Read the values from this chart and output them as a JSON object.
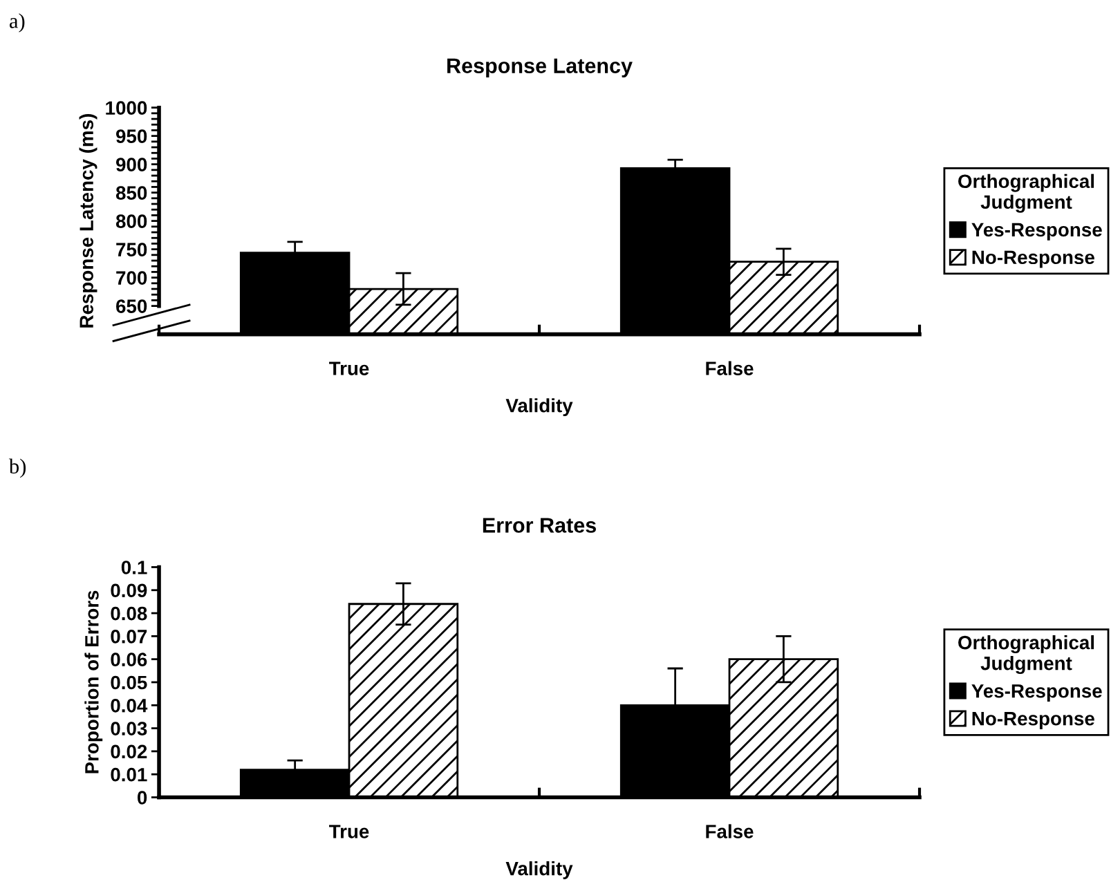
{
  "chart_data": [
    {
      "type": "bar",
      "title": "Response Latency",
      "xlabel": "Validity",
      "ylabel": "Response Latency (ms)",
      "categories": [
        "True",
        "False"
      ],
      "series": [
        {
          "name": "Yes-Response",
          "color": "#000000",
          "values": [
            744,
            893
          ],
          "errors": [
            19,
            15
          ]
        },
        {
          "name": "No-Response",
          "color": "#ffffff",
          "values": [
            680,
            728
          ],
          "errors": [
            28,
            23
          ]
        }
      ],
      "ylim": [
        600,
        1000
      ],
      "yticks": [
        650,
        {
          "value": 660,
          "label": null
        },
        {
          "value": 670,
          "label": null
        },
        {
          "value": 680,
          "label": null
        },
        {
          "value": 690,
          "label": null
        },
        700,
        {
          "value": 710,
          "label": null
        },
        {
          "value": 720,
          "label": null
        },
        {
          "value": 730,
          "label": null
        },
        {
          "value": 740,
          "label": null
        },
        750,
        {
          "value": 760,
          "label": null
        },
        {
          "value": 770,
          "label": null
        },
        {
          "value": 780,
          "label": null
        },
        {
          "value": 790,
          "label": null
        },
        800,
        {
          "value": 810,
          "label": null
        },
        {
          "value": 820,
          "label": null
        },
        {
          "value": 830,
          "label": null
        },
        {
          "value": 840,
          "label": null
        },
        850,
        {
          "value": 860,
          "label": null
        },
        {
          "value": 870,
          "label": null
        },
        {
          "value": 880,
          "label": null
        },
        {
          "value": 890,
          "label": null
        },
        900,
        {
          "value": 910,
          "label": null
        },
        {
          "value": 920,
          "label": null
        },
        {
          "value": 930,
          "label": null
        },
        {
          "value": 940,
          "label": null
        },
        950,
        {
          "value": 960,
          "label": null
        },
        {
          "value": 970,
          "label": null
        },
        {
          "value": 980,
          "label": null
        },
        {
          "value": 990,
          "label": null
        },
        1000
      ],
      "legend": "right",
      "legend_title": "Orthographical\nJudgment",
      "grid": false,
      "annotations": [
        "a)"
      ]
    },
    {
      "type": "bar",
      "title": "Error Rates",
      "xlabel": "Validity",
      "ylabel": "Proportion of Errors",
      "categories": [
        "True",
        "False"
      ],
      "series": [
        {
          "name": "Yes-Response",
          "color": "#000000",
          "values": [
            0.012,
            0.04
          ],
          "errors": [
            0.004,
            0.016
          ]
        },
        {
          "name": "No-Response",
          "color": "#ffffff",
          "values": [
            0.084,
            0.06
          ],
          "errors": [
            0.009,
            0.01
          ]
        }
      ],
      "ylim": [
        0,
        0.1
      ],
      "yticks": [
        0,
        0.01,
        0.02,
        0.03,
        0.04,
        0.05,
        0.06,
        0.07,
        0.08,
        0.09,
        0.1
      ],
      "legend": "right",
      "legend_title": "Orthographical\nJudgment",
      "grid": false,
      "annotations": [
        "b)"
      ]
    }
  ]
}
